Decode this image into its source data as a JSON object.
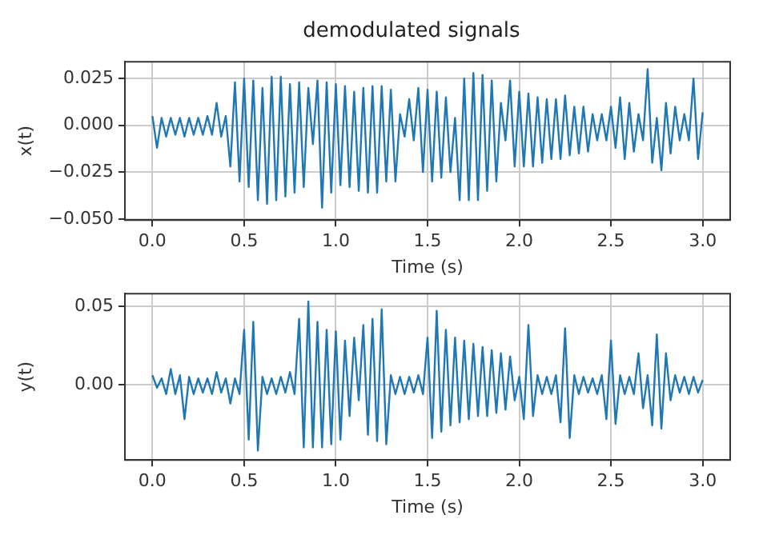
{
  "chart_data": [
    {
      "type": "line",
      "title": "demodulated signals",
      "xlabel": "Time (s)",
      "ylabel": "x(t)",
      "grid": true,
      "xlim": [
        -0.15,
        3.15
      ],
      "ylim": [
        -0.0506,
        0.034
      ],
      "xticks": [
        {
          "value": 0,
          "label": "0.0"
        },
        {
          "value": 0.5,
          "label": "0.5"
        },
        {
          "value": 1,
          "label": "1.0"
        },
        {
          "value": 1.5,
          "label": "1.5"
        },
        {
          "value": 2,
          "label": "2.0"
        },
        {
          "value": 2.5,
          "label": "2.5"
        },
        {
          "value": 3,
          "label": "3.0"
        }
      ],
      "yticks": [
        {
          "value": -0.05,
          "label": "−0.050"
        },
        {
          "value": -0.025,
          "label": "−0.025"
        },
        {
          "value": 0,
          "label": "0.000"
        },
        {
          "value": 0.025,
          "label": "0.025"
        }
      ],
      "x": [
        0,
        0.025,
        0.05,
        0.075,
        0.1,
        0.125,
        0.15,
        0.175,
        0.2,
        0.225,
        0.25,
        0.275,
        0.3,
        0.325,
        0.35,
        0.375,
        0.4,
        0.425,
        0.45,
        0.475,
        0.5,
        0.525,
        0.55,
        0.575,
        0.6,
        0.625,
        0.65,
        0.675,
        0.7,
        0.725,
        0.75,
        0.775,
        0.8,
        0.825,
        0.85,
        0.875,
        0.9,
        0.925,
        0.95,
        0.975,
        1,
        1.025,
        1.05,
        1.075,
        1.1,
        1.125,
        1.15,
        1.175,
        1.2,
        1.225,
        1.25,
        1.275,
        1.3,
        1.325,
        1.35,
        1.375,
        1.4,
        1.425,
        1.45,
        1.475,
        1.5,
        1.525,
        1.55,
        1.575,
        1.6,
        1.625,
        1.65,
        1.675,
        1.7,
        1.725,
        1.75,
        1.775,
        1.8,
        1.825,
        1.85,
        1.875,
        1.9,
        1.925,
        1.95,
        1.975,
        2,
        2.025,
        2.05,
        2.075,
        2.1,
        2.125,
        2.15,
        2.175,
        2.2,
        2.225,
        2.25,
        2.275,
        2.3,
        2.325,
        2.35,
        2.375,
        2.4,
        2.425,
        2.45,
        2.475,
        2.5,
        2.525,
        2.55,
        2.575,
        2.6,
        2.625,
        2.65,
        2.675,
        2.7,
        2.725,
        2.75,
        2.775,
        2.8,
        2.825,
        2.85,
        2.875,
        2.9,
        2.925,
        2.95,
        2.975,
        3
      ],
      "series": [
        {
          "color": "#1f77b4",
          "values": [
            0.005,
            -0.012,
            0.004,
            -0.006,
            0.004,
            -0.005,
            0.004,
            -0.006,
            0.004,
            -0.005,
            0.004,
            -0.005,
            0.005,
            -0.005,
            0.012,
            -0.006,
            0.005,
            -0.022,
            0.023,
            -0.03,
            0.025,
            -0.033,
            0.024,
            -0.04,
            0.02,
            -0.042,
            0.026,
            -0.04,
            0.026,
            -0.038,
            0.022,
            -0.036,
            0.023,
            -0.033,
            0.02,
            -0.01,
            0.024,
            -0.044,
            0.023,
            -0.036,
            0.022,
            -0.032,
            0.021,
            -0.033,
            0.018,
            -0.035,
            0.02,
            -0.036,
            0.021,
            -0.036,
            0.021,
            -0.03,
            0.019,
            -0.03,
            0.006,
            -0.006,
            0.014,
            -0.008,
            0.02,
            -0.025,
            0.019,
            -0.03,
            0.018,
            -0.028,
            0.015,
            -0.025,
            0.004,
            -0.04,
            0.025,
            -0.04,
            0.028,
            -0.04,
            0.027,
            -0.035,
            0.024,
            -0.03,
            0.012,
            -0.008,
            0.024,
            -0.022,
            0.018,
            -0.022,
            0.017,
            -0.022,
            0.015,
            -0.02,
            0.014,
            -0.018,
            0.014,
            -0.018,
            0.016,
            -0.016,
            0.01,
            -0.015,
            0.01,
            -0.014,
            0.006,
            -0.008,
            0.006,
            -0.008,
            0.01,
            -0.012,
            0.015,
            -0.018,
            0.012,
            -0.014,
            0.006,
            -0.008,
            0.03,
            -0.02,
            0.004,
            -0.024,
            0.012,
            -0.015,
            0.01,
            -0.008,
            0.006,
            -0.008,
            0.025,
            -0.018,
            0.007
          ]
        }
      ]
    },
    {
      "type": "line",
      "xlabel": "Time (s)",
      "ylabel": "y(t)",
      "grid": true,
      "xlim": [
        -0.15,
        3.15
      ],
      "ylim": [
        -0.048,
        0.058
      ],
      "xticks": [
        {
          "value": 0,
          "label": "0.0"
        },
        {
          "value": 0.5,
          "label": "0.5"
        },
        {
          "value": 1,
          "label": "1.0"
        },
        {
          "value": 1.5,
          "label": "1.5"
        },
        {
          "value": 2,
          "label": "2.0"
        },
        {
          "value": 2.5,
          "label": "2.5"
        },
        {
          "value": 3,
          "label": "3.0"
        }
      ],
      "yticks": [
        {
          "value": 0,
          "label": "0.00"
        },
        {
          "value": 0.05,
          "label": "0.05"
        }
      ],
      "x": [
        0,
        0.025,
        0.05,
        0.075,
        0.1,
        0.125,
        0.15,
        0.175,
        0.2,
        0.225,
        0.25,
        0.275,
        0.3,
        0.325,
        0.35,
        0.375,
        0.4,
        0.425,
        0.45,
        0.475,
        0.5,
        0.525,
        0.55,
        0.575,
        0.6,
        0.625,
        0.65,
        0.675,
        0.7,
        0.725,
        0.75,
        0.775,
        0.8,
        0.825,
        0.85,
        0.875,
        0.9,
        0.925,
        0.95,
        0.975,
        1,
        1.025,
        1.05,
        1.075,
        1.1,
        1.125,
        1.15,
        1.175,
        1.2,
        1.225,
        1.25,
        1.275,
        1.3,
        1.325,
        1.35,
        1.375,
        1.4,
        1.425,
        1.45,
        1.475,
        1.5,
        1.525,
        1.55,
        1.575,
        1.6,
        1.625,
        1.65,
        1.675,
        1.7,
        1.725,
        1.75,
        1.775,
        1.8,
        1.825,
        1.85,
        1.875,
        1.9,
        1.925,
        1.95,
        1.975,
        2,
        2.025,
        2.05,
        2.075,
        2.1,
        2.125,
        2.15,
        2.175,
        2.2,
        2.225,
        2.25,
        2.275,
        2.3,
        2.325,
        2.35,
        2.375,
        2.4,
        2.425,
        2.45,
        2.475,
        2.5,
        2.525,
        2.55,
        2.575,
        2.6,
        2.625,
        2.65,
        2.675,
        2.7,
        2.725,
        2.75,
        2.775,
        2.8,
        2.825,
        2.85,
        2.875,
        2.9,
        2.925,
        2.95,
        2.975,
        3
      ],
      "series": [
        {
          "color": "#1f77b4",
          "values": [
            0.006,
            -0.002,
            0.004,
            -0.006,
            0.01,
            -0.006,
            0.006,
            -0.022,
            0.005,
            -0.006,
            0.004,
            -0.005,
            0.004,
            -0.006,
            0.008,
            -0.005,
            0.004,
            -0.012,
            0.004,
            -0.006,
            0.035,
            -0.035,
            0.04,
            -0.042,
            0.005,
            -0.006,
            0.004,
            -0.006,
            0.005,
            -0.005,
            0.008,
            -0.006,
            0.042,
            -0.04,
            0.053,
            -0.04,
            0.04,
            -0.04,
            0.035,
            -0.038,
            0.034,
            -0.035,
            0.028,
            -0.02,
            0.03,
            -0.01,
            0.038,
            -0.032,
            0.042,
            -0.036,
            0.048,
            -0.038,
            0.006,
            -0.006,
            0.005,
            -0.006,
            0.005,
            -0.005,
            0.006,
            -0.006,
            0.03,
            -0.034,
            0.047,
            -0.03,
            0.035,
            -0.026,
            0.03,
            -0.024,
            0.028,
            -0.022,
            0.026,
            -0.02,
            0.024,
            -0.02,
            0.022,
            -0.018,
            0.02,
            -0.016,
            0.018,
            -0.01,
            0.005,
            -0.022,
            0.038,
            -0.02,
            0.006,
            -0.006,
            0.005,
            -0.006,
            0.006,
            -0.024,
            0.036,
            -0.034,
            0.006,
            -0.006,
            0.005,
            -0.005,
            0.004,
            -0.006,
            0.006,
            -0.022,
            0.028,
            -0.025,
            0.006,
            -0.006,
            0.005,
            -0.006,
            0.02,
            -0.015,
            0.006,
            -0.026,
            0.032,
            -0.028,
            0.02,
            -0.01,
            0.006,
            -0.005,
            0.005,
            -0.006,
            0.005,
            -0.005,
            0.003
          ]
        }
      ]
    }
  ]
}
